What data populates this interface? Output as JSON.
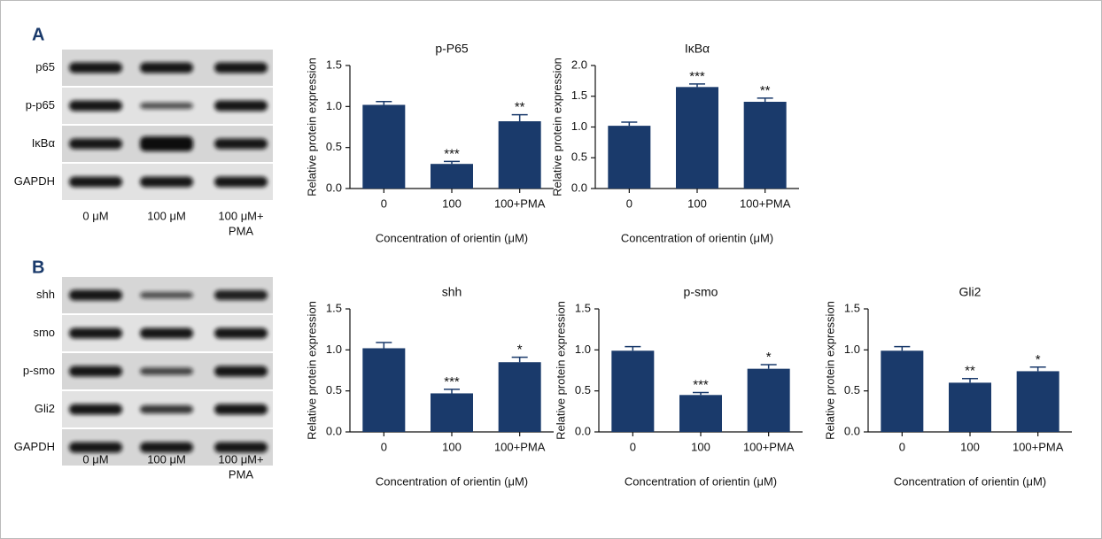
{
  "figure": {
    "panels": [
      {
        "label": "A",
        "blot": {
          "rows": [
            "p65",
            "p-p65",
            "IκBα",
            "GAPDH"
          ],
          "lanes": [
            [
              "0 μM"
            ],
            [
              "100 μM"
            ],
            [
              "100 μM+",
              "PMA"
            ]
          ]
        }
      },
      {
        "label": "B",
        "blot": {
          "rows": [
            "shh",
            "smo",
            "p-smo",
            "Gli2",
            "GAPDH"
          ],
          "lanes": [
            [
              "0 μM"
            ],
            [
              "100 μM"
            ],
            [
              "100 μM+",
              "PMA"
            ]
          ]
        }
      }
    ]
  },
  "chart_data": [
    {
      "type": "bar",
      "title": "p-P65",
      "ylabel": "Relative protein expression",
      "xlabel": "Concentration of orientin (μM)",
      "categories": [
        "0",
        "100",
        "100+PMA"
      ],
      "values": [
        1.02,
        0.3,
        0.82
      ],
      "errors": [
        0.04,
        0.03,
        0.08
      ],
      "annotations": [
        null,
        "***",
        "**"
      ],
      "color": "#1a3a6b",
      "ylim": [
        0,
        1.5
      ],
      "yticks": [
        {
          "value": 0,
          "label": "0.0"
        },
        0.5,
        {
          "value": 1,
          "label": "1.0"
        },
        1.5
      ]
    },
    {
      "type": "bar",
      "title": "IκBα",
      "ylabel": "Relative protein expression",
      "xlabel": "Concentration of orientin (μM)",
      "categories": [
        "0",
        "100",
        "100+PMA"
      ],
      "values": [
        1.02,
        1.65,
        1.41
      ],
      "errors": [
        0.06,
        0.05,
        0.06
      ],
      "annotations": [
        null,
        "***",
        "**"
      ],
      "color": "#1a3a6b",
      "ylim": [
        0,
        2
      ],
      "yticks": [
        {
          "value": 0,
          "label": "0.0"
        },
        0.5,
        {
          "value": 1,
          "label": "1.0"
        },
        1.5,
        {
          "value": 2,
          "label": "2.0"
        }
      ]
    },
    {
      "type": "bar",
      "title": "shh",
      "ylabel": "Relative protein expression",
      "xlabel": "Concentration of orientin (μM)",
      "categories": [
        "0",
        "100",
        "100+PMA"
      ],
      "values": [
        1.02,
        0.47,
        0.85
      ],
      "errors": [
        0.07,
        0.05,
        0.06
      ],
      "annotations": [
        null,
        "***",
        "*"
      ],
      "color": "#1a3a6b",
      "ylim": [
        0,
        1.5
      ],
      "yticks": [
        {
          "value": 0,
          "label": "0.0"
        },
        0.5,
        {
          "value": 1,
          "label": "1.0"
        },
        1.5
      ]
    },
    {
      "type": "bar",
      "title": "p-smo",
      "ylabel": "Relative protein expression",
      "xlabel": "Concentration of orientin (μM)",
      "categories": [
        "0",
        "100",
        "100+PMA"
      ],
      "values": [
        0.99,
        0.45,
        0.77
      ],
      "errors": [
        0.05,
        0.03,
        0.05
      ],
      "annotations": [
        null,
        "***",
        "*"
      ],
      "color": "#1a3a6b",
      "ylim": [
        0,
        1.5
      ],
      "yticks": [
        {
          "value": 0,
          "label": "0.0"
        },
        0.5,
        {
          "value": 1,
          "label": "1.0"
        },
        1.5
      ]
    },
    {
      "type": "bar",
      "title": "Gli2",
      "ylabel": "Relative protein expression",
      "xlabel": "Concentration of orientin (μM)",
      "categories": [
        "0",
        "100",
        "100+PMA"
      ],
      "values": [
        0.99,
        0.6,
        0.74
      ],
      "errors": [
        0.05,
        0.05,
        0.05
      ],
      "annotations": [
        null,
        "**",
        "*"
      ],
      "color": "#1a3a6b",
      "ylim": [
        0,
        1.5
      ],
      "yticks": [
        {
          "value": 0,
          "label": "0.0"
        },
        0.5,
        {
          "value": 1,
          "label": "1.0"
        },
        1.5
      ]
    }
  ]
}
